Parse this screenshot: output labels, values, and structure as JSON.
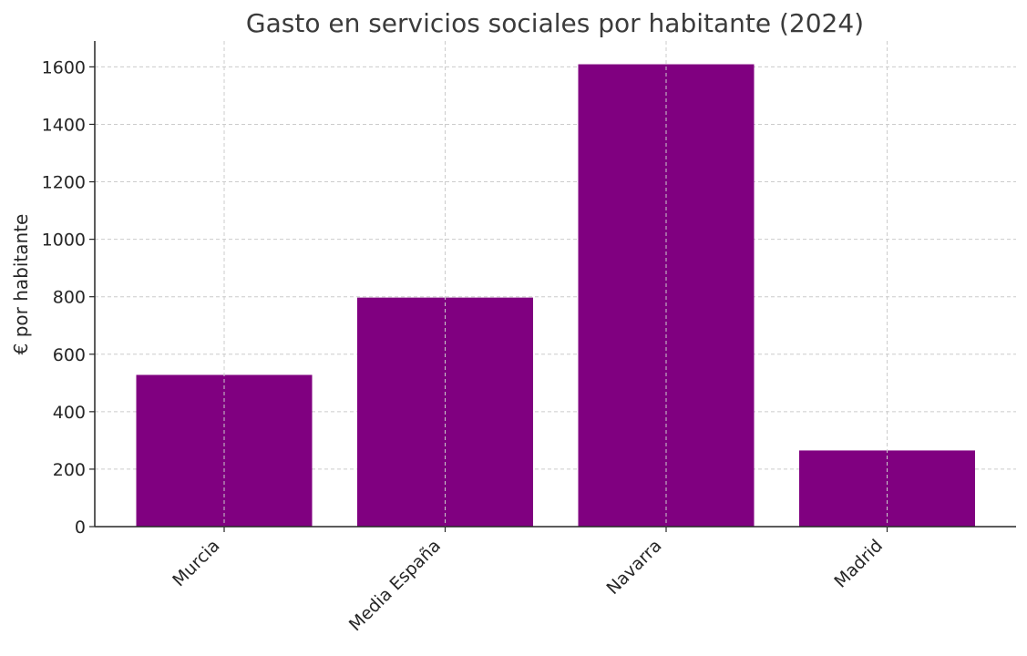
{
  "chart_data": {
    "type": "bar",
    "title": "Gasto en servicios sociales por habitante (2024)",
    "xlabel": "",
    "ylabel": "€ por habitante",
    "categories": [
      "Murcia",
      "Media España",
      "Navarra",
      "Madrid"
    ],
    "values": [
      528,
      797,
      1609,
      265
    ],
    "ylim": [
      0,
      1690
    ],
    "yticks": [
      0,
      200,
      400,
      600,
      800,
      1000,
      1200,
      1400,
      1600
    ],
    "ytick_labels": [
      "0",
      "200",
      "400",
      "600",
      "800",
      "1000",
      "1200",
      "1400",
      "1600"
    ],
    "grid": true,
    "legend": "none",
    "bar_color": "#800080",
    "grid_color": "#cccccc",
    "axis_color": "#262626"
  }
}
